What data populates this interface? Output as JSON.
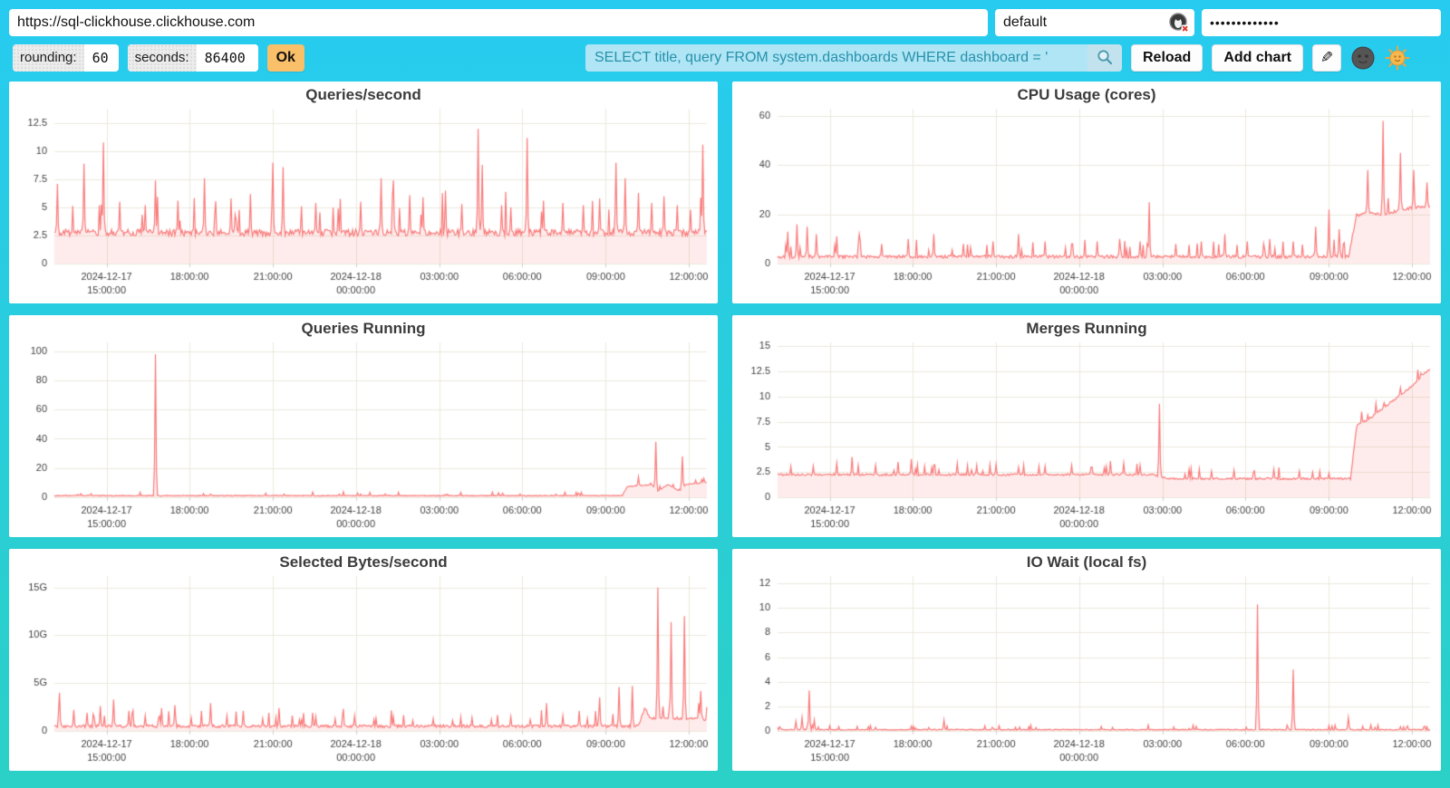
{
  "browser": {
    "url": "https://sql-clickhouse.clickhouse.com",
    "user": "default",
    "password_masked": "•••••••••••••"
  },
  "toolbar": {
    "rounding_label": "rounding:",
    "rounding_value": "60",
    "seconds_label": "seconds:",
    "seconds_value": "86400",
    "ok_label": "Ok",
    "query": "SELECT title, query FROM system.dashboards WHERE dashboard = '",
    "reload_label": "Reload",
    "add_chart_label": "Add chart",
    "edit_icon": "✎"
  },
  "colors": {
    "background_top": "#27CBF0",
    "background_bottom": "#2BD0C6",
    "accent_orange": "#F9BF69",
    "query_bg": "#AFE5F4",
    "query_text": "#2791AC",
    "line": "#F97B7B",
    "fill": "rgba(249,123,123,0.14)",
    "grid": "#EBE8DC",
    "axis_text": "#3f3f3f"
  },
  "chart_data": {
    "x_ticks": [
      {
        "pos": 0.08,
        "line1": "2024-12-17",
        "line2": "15:00:00"
      },
      {
        "pos": 0.207,
        "line1": "18:00:00",
        "line2": ""
      },
      {
        "pos": 0.335,
        "line1": "21:00:00",
        "line2": ""
      },
      {
        "pos": 0.462,
        "line1": "2024-12-18",
        "line2": "00:00:00"
      },
      {
        "pos": 0.59,
        "line1": "03:00:00",
        "line2": ""
      },
      {
        "pos": 0.717,
        "line1": "06:00:00",
        "line2": ""
      },
      {
        "pos": 0.845,
        "line1": "09:00:00",
        "line2": ""
      },
      {
        "pos": 0.972,
        "line1": "12:00:00",
        "line2": ""
      }
    ],
    "charts": [
      {
        "type": "area",
        "title": "Queries/second",
        "y_max": 13.8,
        "y_ticks": [
          {
            "v": 0,
            "label": "0"
          },
          {
            "v": 2.5,
            "label": "2.5"
          },
          {
            "v": 5,
            "label": "5"
          },
          {
            "v": 7.5,
            "label": "7.5"
          },
          {
            "v": 10,
            "label": "10"
          },
          {
            "v": 12.5,
            "label": "12.5"
          }
        ],
        "levels": [
          [
            0,
            2.45
          ],
          [
            1,
            2.45
          ]
        ],
        "noise": 1.1,
        "seed": 11,
        "spikes": [
          [
            0.004,
            7.1
          ],
          [
            0.045,
            8.9
          ],
          [
            0.075,
            10.8
          ],
          [
            0.1,
            5.5
          ],
          [
            0.14,
            5.2
          ],
          [
            0.155,
            7.4
          ],
          [
            0.19,
            5.6
          ],
          [
            0.23,
            7.6
          ],
          [
            0.27,
            5.8
          ],
          [
            0.3,
            6.2
          ],
          [
            0.335,
            9.0
          ],
          [
            0.35,
            8.6
          ],
          [
            0.4,
            5.4
          ],
          [
            0.435,
            4.9
          ],
          [
            0.47,
            5.5
          ],
          [
            0.5,
            7.6
          ],
          [
            0.52,
            7.4
          ],
          [
            0.545,
            6.1
          ],
          [
            0.565,
            5.9
          ],
          [
            0.6,
            6.5
          ],
          [
            0.625,
            5.3
          ],
          [
            0.65,
            12.0
          ],
          [
            0.655,
            8.8
          ],
          [
            0.685,
            5.2
          ],
          [
            0.7,
            5.0
          ],
          [
            0.725,
            11.2
          ],
          [
            0.75,
            5.6
          ],
          [
            0.78,
            5.4
          ],
          [
            0.81,
            5.2
          ],
          [
            0.835,
            5.8
          ],
          [
            0.86,
            9.0
          ],
          [
            0.875,
            7.6
          ],
          [
            0.895,
            6.3
          ],
          [
            0.915,
            5.4
          ],
          [
            0.935,
            6.0
          ],
          [
            0.955,
            5.2
          ],
          [
            0.975,
            4.8
          ],
          [
            0.993,
            10.6
          ]
        ]
      },
      {
        "type": "area",
        "title": "CPU Usage (cores)",
        "y_max": 63,
        "y_ticks": [
          {
            "v": 0,
            "label": "0"
          },
          {
            "v": 20,
            "label": "20"
          },
          {
            "v": 40,
            "label": "40"
          },
          {
            "v": 60,
            "label": "60"
          }
        ],
        "levels": [
          [
            0,
            2.2
          ],
          [
            0.875,
            2.2
          ],
          [
            0.887,
            19
          ],
          [
            0.91,
            20
          ],
          [
            0.93,
            19
          ],
          [
            0.95,
            21
          ],
          [
            0.97,
            22
          ],
          [
            1,
            23
          ]
        ],
        "noise": 2.2,
        "seed": 22,
        "spikes": [
          [
            0.015,
            13
          ],
          [
            0.03,
            16
          ],
          [
            0.045,
            15
          ],
          [
            0.06,
            12
          ],
          [
            0.09,
            11
          ],
          [
            0.125,
            12
          ],
          [
            0.16,
            8
          ],
          [
            0.2,
            10
          ],
          [
            0.24,
            12
          ],
          [
            0.285,
            8
          ],
          [
            0.33,
            9
          ],
          [
            0.37,
            12
          ],
          [
            0.41,
            9
          ],
          [
            0.45,
            8
          ],
          [
            0.49,
            9
          ],
          [
            0.525,
            10
          ],
          [
            0.555,
            9
          ],
          [
            0.57,
            25
          ],
          [
            0.61,
            8
          ],
          [
            0.65,
            9
          ],
          [
            0.685,
            12
          ],
          [
            0.72,
            9
          ],
          [
            0.755,
            10
          ],
          [
            0.79,
            9
          ],
          [
            0.825,
            15
          ],
          [
            0.845,
            22
          ],
          [
            0.86,
            14
          ],
          [
            0.905,
            38
          ],
          [
            0.928,
            58
          ],
          [
            0.955,
            45
          ],
          [
            0.975,
            38
          ],
          [
            0.995,
            33
          ]
        ]
      },
      {
        "type": "area",
        "title": "Queries Running",
        "y_max": 106,
        "y_ticks": [
          {
            "v": 0,
            "label": "0"
          },
          {
            "v": 20,
            "label": "20"
          },
          {
            "v": 40,
            "label": "40"
          },
          {
            "v": 60,
            "label": "60"
          },
          {
            "v": 80,
            "label": "80"
          },
          {
            "v": 100,
            "label": "100"
          }
        ],
        "levels": [
          [
            0,
            0.9
          ],
          [
            0.87,
            0.9
          ],
          [
            0.878,
            7
          ],
          [
            0.915,
            8.5
          ],
          [
            0.925,
            4
          ],
          [
            0.94,
            8.5
          ],
          [
            0.958,
            4
          ],
          [
            0.968,
            8.5
          ],
          [
            1,
            10
          ]
        ],
        "noise": 0.8,
        "seed": 33,
        "spikes": [
          [
            0.04,
            2.5
          ],
          [
            0.155,
            98
          ],
          [
            0.6,
            2
          ],
          [
            0.895,
            14
          ],
          [
            0.922,
            38
          ],
          [
            0.963,
            28
          ],
          [
            0.995,
            13
          ]
        ]
      },
      {
        "type": "area",
        "title": "Merges Running",
        "y_max": 15.4,
        "y_ticks": [
          {
            "v": 0,
            "label": "0"
          },
          {
            "v": 2.5,
            "label": "2.5"
          },
          {
            "v": 5,
            "label": "5"
          },
          {
            "v": 7.5,
            "label": "7.5"
          },
          {
            "v": 10,
            "label": "10"
          },
          {
            "v": 12.5,
            "label": "12.5"
          },
          {
            "v": 15,
            "label": "15"
          }
        ],
        "levels": [
          [
            0,
            2.15
          ],
          [
            0.575,
            2.15
          ],
          [
            0.6,
            1.75
          ],
          [
            0.878,
            1.75
          ],
          [
            0.888,
            7.2
          ],
          [
            0.905,
            7.6
          ],
          [
            0.925,
            8.6
          ],
          [
            0.945,
            9.6
          ],
          [
            0.962,
            10.4
          ],
          [
            0.978,
            11.3
          ],
          [
            0.99,
            12.2
          ],
          [
            1,
            12.6
          ]
        ],
        "noise": 0.35,
        "seed": 44,
        "spikes": [
          [
            0.055,
            3.1
          ],
          [
            0.09,
            3.4
          ],
          [
            0.115,
            4.0
          ],
          [
            0.15,
            3.2
          ],
          [
            0.185,
            3.5
          ],
          [
            0.205,
            3.8
          ],
          [
            0.24,
            3.2
          ],
          [
            0.275,
            3.4
          ],
          [
            0.305,
            3.2
          ],
          [
            0.335,
            3.3
          ],
          [
            0.37,
            3.0
          ],
          [
            0.41,
            3.1
          ],
          [
            0.45,
            3.2
          ],
          [
            0.48,
            3.0
          ],
          [
            0.51,
            3.6
          ],
          [
            0.53,
            3.4
          ],
          [
            0.555,
            3.2
          ],
          [
            0.585,
            9.3
          ],
          [
            0.63,
            2.8
          ],
          [
            0.665,
            2.6
          ],
          [
            0.7,
            2.7
          ],
          [
            0.73,
            2.5
          ],
          [
            0.76,
            2.8
          ],
          [
            0.8,
            2.6
          ],
          [
            0.82,
            2.5
          ],
          [
            0.845,
            2.4
          ],
          [
            0.93,
            9.4
          ],
          [
            0.955,
            10.9
          ]
        ]
      },
      {
        "type": "area",
        "title": "Selected Bytes/second",
        "y_max": 16.2,
        "y_ticks": [
          {
            "v": 0,
            "label": "0"
          },
          {
            "v": 5,
            "label": "5G"
          },
          {
            "v": 10,
            "label": "10G"
          },
          {
            "v": 15,
            "label": "15G"
          }
        ],
        "levels": [
          [
            0,
            0.35
          ],
          [
            0.895,
            0.35
          ],
          [
            0.905,
            2.3
          ],
          [
            0.913,
            1.15
          ],
          [
            0.985,
            1.2
          ],
          [
            1,
            1.0
          ]
        ],
        "noise": 0.55,
        "seed": 55,
        "spikes": [
          [
            0.008,
            4.0
          ],
          [
            0.03,
            2.2
          ],
          [
            0.05,
            1.9
          ],
          [
            0.07,
            2.6
          ],
          [
            0.09,
            3.3
          ],
          [
            0.115,
            2.1
          ],
          [
            0.14,
            1.6
          ],
          [
            0.165,
            2.4
          ],
          [
            0.185,
            2.7
          ],
          [
            0.21,
            1.4
          ],
          [
            0.24,
            2.9
          ],
          [
            0.265,
            1.6
          ],
          [
            0.29,
            2.1
          ],
          [
            0.32,
            1.3
          ],
          [
            0.345,
            2.4
          ],
          [
            0.375,
            1.2
          ],
          [
            0.4,
            1.5
          ],
          [
            0.43,
            1.3
          ],
          [
            0.46,
            1.6
          ],
          [
            0.49,
            1.2
          ],
          [
            0.52,
            1.5
          ],
          [
            0.55,
            1.1
          ],
          [
            0.58,
            1.3
          ],
          [
            0.61,
            1.1
          ],
          [
            0.64,
            1.4
          ],
          [
            0.67,
            1.2
          ],
          [
            0.7,
            1.5
          ],
          [
            0.73,
            1.2
          ],
          [
            0.755,
            2.9
          ],
          [
            0.78,
            1.6
          ],
          [
            0.805,
            2.1
          ],
          [
            0.835,
            3.5
          ],
          [
            0.865,
            4.6
          ],
          [
            0.885,
            4.7
          ],
          [
            0.925,
            15.0
          ],
          [
            0.945,
            11.4
          ],
          [
            0.965,
            12.0
          ],
          [
            0.99,
            4.2
          ]
        ]
      },
      {
        "type": "area",
        "title": "IO Wait (local fs)",
        "y_max": 12.6,
        "y_ticks": [
          {
            "v": 0,
            "label": "0"
          },
          {
            "v": 2,
            "label": "2"
          },
          {
            "v": 4,
            "label": "4"
          },
          {
            "v": 6,
            "label": "6"
          },
          {
            "v": 8,
            "label": "8"
          },
          {
            "v": 10,
            "label": "10"
          },
          {
            "v": 12,
            "label": "12"
          }
        ],
        "levels": [
          [
            0,
            0.07
          ],
          [
            1,
            0.07
          ]
        ],
        "noise": 0.12,
        "seed": 66,
        "spikes": [
          [
            0.028,
            0.8
          ],
          [
            0.038,
            1.1
          ],
          [
            0.048,
            3.3
          ],
          [
            0.056,
            0.9
          ],
          [
            0.15,
            0.3
          ],
          [
            0.255,
            0.9
          ],
          [
            0.33,
            0.25
          ],
          [
            0.5,
            0.15
          ],
          [
            0.63,
            0.2
          ],
          [
            0.735,
            10.3
          ],
          [
            0.79,
            5.0
          ],
          [
            0.875,
            1.1
          ],
          [
            0.955,
            0.35
          ]
        ]
      }
    ]
  }
}
